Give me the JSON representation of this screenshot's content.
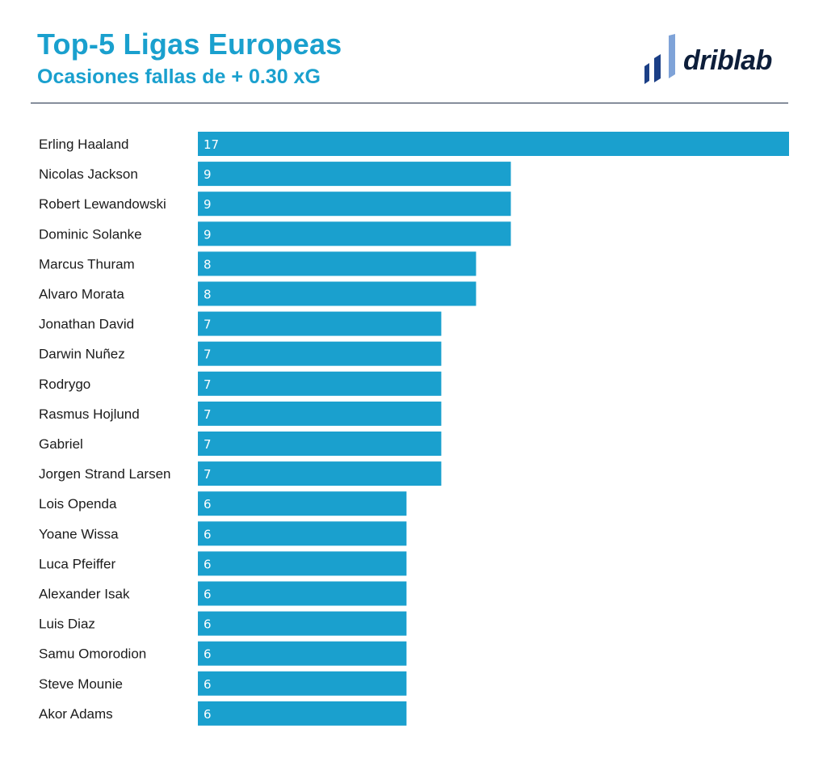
{
  "header": {
    "title": "Top-5 Ligas Europeas",
    "subtitle": "Ocasiones fallas de + 0.30 xG"
  },
  "logo": {
    "text": "driblab",
    "colors": {
      "text": "#0d1e3a",
      "mark_dark": "#1b3f86",
      "mark_light": "#7fa3d8"
    }
  },
  "colors": {
    "title": "#1aa0ce",
    "bar": "#1aa0ce",
    "divider": "#1c2b45"
  },
  "chart_data": {
    "type": "bar",
    "orientation": "horizontal",
    "title": "Top-5 Ligas Europeas",
    "subtitle": "Ocasiones fallas de + 0.30 xG",
    "xlabel": "",
    "ylabel": "",
    "xlim": [
      0,
      17
    ],
    "grid": false,
    "categories": [
      "Erling Haaland",
      "Nicolas Jackson",
      "Robert Lewandowski",
      "Dominic Solanke",
      "Marcus Thuram",
      "Alvaro Morata",
      "Jonathan David",
      "Darwin Nuñez",
      "Rodrygo",
      "Rasmus Hojlund",
      "Gabriel",
      "Jorgen Strand Larsen",
      "Lois Openda",
      "Yoane Wissa",
      "Luca Pfeiffer",
      "Alexander Isak",
      "Luis Diaz",
      "Samu Omorodion",
      "Steve Mounie",
      "Akor Adams"
    ],
    "values": [
      17,
      9,
      9,
      9,
      8,
      8,
      7,
      7,
      7,
      7,
      7,
      7,
      6,
      6,
      6,
      6,
      6,
      6,
      6,
      6
    ]
  }
}
